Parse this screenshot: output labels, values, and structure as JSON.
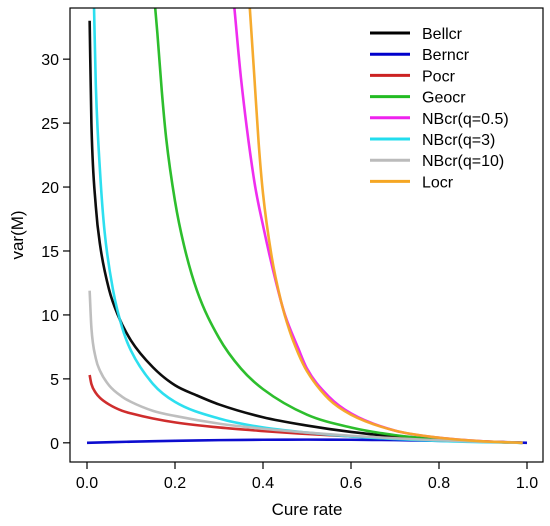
{
  "chart_data": {
    "type": "line",
    "title": "",
    "xlabel": "Cure rate",
    "ylabel": "var(M)",
    "xlim": [
      0,
      1
    ],
    "ylim": [
      -1.5,
      34
    ],
    "xticks": [
      "0.0",
      "0.2",
      "0.4",
      "0.6",
      "0.8",
      "1.0"
    ],
    "yticks": [
      "0",
      "5",
      "10",
      "15",
      "20",
      "25",
      "30"
    ],
    "grid": false,
    "legend_position": "top-right",
    "series": [
      {
        "name": "Bellcr",
        "color": "#000000",
        "x": [
          0.006,
          0.01,
          0.02,
          0.03,
          0.05,
          0.07,
          0.1,
          0.15,
          0.2,
          0.25,
          0.3,
          0.4,
          0.5,
          0.6,
          0.7,
          0.8,
          0.9,
          0.99
        ],
        "y": [
          33.0,
          25.0,
          18.5,
          15.4,
          12.0,
          10.0,
          8.0,
          5.9,
          4.5,
          3.7,
          3.0,
          2.0,
          1.35,
          0.85,
          0.5,
          0.25,
          0.1,
          0.0
        ]
      },
      {
        "name": "Berncr",
        "color": "#0000cc",
        "x": [
          0.0,
          0.1,
          0.2,
          0.3,
          0.4,
          0.5,
          0.6,
          0.7,
          0.8,
          0.9,
          1.0
        ],
        "y": [
          0.0,
          0.09,
          0.16,
          0.21,
          0.24,
          0.25,
          0.24,
          0.21,
          0.16,
          0.09,
          0.0
        ]
      },
      {
        "name": "Pocr",
        "color": "#cc2222",
        "x": [
          0.006,
          0.01,
          0.02,
          0.03,
          0.05,
          0.08,
          0.1,
          0.15,
          0.2,
          0.3,
          0.4,
          0.5,
          0.6,
          0.7,
          0.8,
          0.9,
          0.99
        ],
        "y": [
          5.3,
          4.6,
          3.9,
          3.5,
          3.0,
          2.5,
          2.3,
          1.9,
          1.6,
          1.2,
          0.92,
          0.69,
          0.51,
          0.36,
          0.22,
          0.11,
          0.01
        ]
      },
      {
        "name": "Geocr",
        "color": "#22bb22",
        "x": [
          0.155,
          0.16,
          0.17,
          0.18,
          0.2,
          0.22,
          0.25,
          0.3,
          0.35,
          0.4,
          0.5,
          0.6,
          0.7,
          0.8,
          0.9,
          0.99
        ],
        "y": [
          34.0,
          32.0,
          27.5,
          23.8,
          18.9,
          15.5,
          11.9,
          8.2,
          5.8,
          4.2,
          2.2,
          1.2,
          0.6,
          0.28,
          0.1,
          0.0
        ]
      },
      {
        "name": "NBcr(q=0.5)",
        "color": "#ee22ee",
        "x": [
          0.335,
          0.35,
          0.38,
          0.4,
          0.43,
          0.45,
          0.48,
          0.5,
          0.55,
          0.6,
          0.7,
          0.8,
          0.9,
          0.99
        ],
        "y": [
          34.0,
          28.5,
          20.5,
          17.0,
          12.5,
          10.0,
          7.4,
          5.8,
          3.6,
          2.3,
          0.95,
          0.4,
          0.12,
          0.0
        ]
      },
      {
        "name": "NBcr(q=3)",
        "color": "#22ddee",
        "x": [
          0.016,
          0.02,
          0.03,
          0.04,
          0.06,
          0.08,
          0.1,
          0.15,
          0.2,
          0.3,
          0.4,
          0.5,
          0.6,
          0.7,
          0.8,
          0.9,
          0.99
        ],
        "y": [
          34.0,
          28.0,
          21.0,
          16.5,
          11.8,
          9.0,
          7.2,
          4.6,
          3.2,
          1.9,
          1.2,
          0.8,
          0.5,
          0.3,
          0.15,
          0.05,
          0.0
        ]
      },
      {
        "name": "NBcr(q=10)",
        "color": "#bbbbbb",
        "x": [
          0.006,
          0.01,
          0.02,
          0.03,
          0.05,
          0.08,
          0.1,
          0.15,
          0.2,
          0.3,
          0.4,
          0.5,
          0.6,
          0.7,
          0.8,
          0.9,
          0.99
        ],
        "y": [
          11.9,
          9.0,
          6.6,
          5.6,
          4.5,
          3.6,
          3.2,
          2.5,
          2.1,
          1.5,
          1.1,
          0.8,
          0.55,
          0.35,
          0.2,
          0.08,
          0.0
        ]
      },
      {
        "name": "Locr",
        "color": "#f5a623",
        "x": [
          0.37,
          0.38,
          0.39,
          0.4,
          0.42,
          0.44,
          0.46,
          0.48,
          0.5,
          0.55,
          0.6,
          0.7,
          0.8,
          0.9,
          0.99
        ],
        "y": [
          34.0,
          28.8,
          23.5,
          19.5,
          14.5,
          11.2,
          8.8,
          7.0,
          5.6,
          3.4,
          2.2,
          0.95,
          0.4,
          0.12,
          0.0
        ]
      }
    ]
  }
}
